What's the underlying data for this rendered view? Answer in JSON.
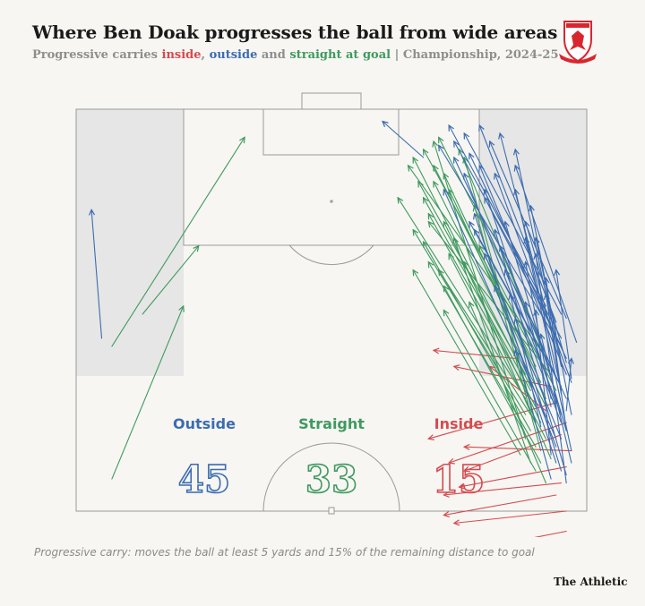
{
  "header": {
    "title": "Where Ben Doak progresses the ball from wide areas",
    "subtitle_prefix": "Progressive carries ",
    "kw_inside": "inside",
    "sep1": ", ",
    "kw_outside": "outside",
    "sep2": " and ",
    "kw_straight": "straight at goal",
    "subtitle_suffix": " | Championship, 2024-25"
  },
  "crest": {
    "icon": "middlesbrough-crest-icon",
    "color": "#d8262f"
  },
  "colors": {
    "inside": "#d54a4f",
    "outside": "#3c6cb0",
    "straight": "#3f9a5f",
    "zone": "#e6e6e6",
    "pitch_line": "#9a9a9a"
  },
  "counts": {
    "outside": {
      "label": "Outside",
      "value": "45"
    },
    "straight": {
      "label": "Straight",
      "value": "33"
    },
    "inside": {
      "label": "Inside",
      "value": "15"
    }
  },
  "footnote": "Progressive carry: moves the ball at least 5 yards and 15% of the remaining distance to goal",
  "brand": "The Athletic",
  "chart_data": {
    "type": "scatter",
    "title": "Where Ben Doak progresses the ball from wide areas",
    "coordinate_note": "x 0-100 across pitch (left to right as viewed), y 0-100 from attacking goal line downwards",
    "categories": [
      "outside",
      "straight",
      "inside"
    ],
    "series": [
      {
        "name": "Outside",
        "color": "#3c6cb0",
        "carries": [
          [
            5,
            57,
            3,
            25
          ],
          [
            68,
            12,
            60,
            3
          ],
          [
            92,
            49,
            73,
            4
          ],
          [
            95,
            51,
            76,
            6
          ],
          [
            94,
            53,
            79,
            4
          ],
          [
            96,
            52,
            81,
            8
          ],
          [
            95,
            57,
            74,
            8
          ],
          [
            94,
            60,
            83,
            6
          ],
          [
            96,
            62,
            77,
            11
          ],
          [
            95,
            64,
            86,
            10
          ],
          [
            96,
            66,
            79,
            14
          ],
          [
            97,
            68,
            82,
            16
          ],
          [
            95,
            70,
            86,
            20
          ],
          [
            96,
            72,
            74,
            12
          ],
          [
            94,
            74,
            80,
            20
          ],
          [
            97,
            76,
            89,
            24
          ],
          [
            95,
            78,
            76,
            16
          ],
          [
            96,
            80,
            84,
            28
          ],
          [
            94,
            82,
            72,
            20
          ],
          [
            97,
            85,
            88,
            32
          ],
          [
            94,
            88,
            78,
            26
          ],
          [
            96,
            91,
            82,
            30
          ],
          [
            93,
            55,
            71,
            9
          ],
          [
            95,
            59,
            80,
            22
          ],
          [
            96,
            63,
            88,
            28
          ],
          [
            98,
            58,
            86,
            14
          ],
          [
            94,
            67,
            83,
            34
          ],
          [
            95,
            69,
            77,
            28
          ],
          [
            93,
            72,
            88,
            38
          ],
          [
            95,
            76,
            84,
            40
          ],
          [
            96,
            80,
            92,
            42
          ],
          [
            94,
            84,
            82,
            44
          ],
          [
            91,
            79,
            85,
            46
          ],
          [
            93,
            86,
            90,
            50
          ],
          [
            95,
            90,
            86,
            52
          ],
          [
            96,
            93,
            90,
            36
          ],
          [
            92,
            62,
            78,
            30
          ],
          [
            94,
            56,
            90,
            32
          ],
          [
            95,
            71,
            92,
            46
          ],
          [
            97,
            67,
            94,
            40
          ],
          [
            93,
            74,
            88,
            48
          ],
          [
            95,
            82,
            80,
            36
          ],
          [
            97,
            88,
            91,
            56
          ],
          [
            93,
            92,
            86,
            60
          ],
          [
            96,
            75,
            97,
            62
          ]
        ]
      },
      {
        "name": "Straight",
        "color": "#3f9a5f",
        "carries": [
          [
            7,
            92,
            21,
            49
          ],
          [
            7,
            59,
            33,
            7
          ],
          [
            13,
            51,
            24,
            34
          ],
          [
            91,
            57,
            71,
            7
          ],
          [
            89,
            59,
            68,
            10
          ],
          [
            92,
            62,
            75,
            10
          ],
          [
            90,
            64,
            70,
            14
          ],
          [
            88,
            66,
            67,
            18
          ],
          [
            91,
            68,
            72,
            16
          ],
          [
            89,
            70,
            68,
            22
          ],
          [
            92,
            72,
            73,
            20
          ],
          [
            90,
            74,
            69,
            26
          ],
          [
            88,
            76,
            66,
            30
          ],
          [
            91,
            78,
            72,
            28
          ],
          [
            89,
            80,
            68,
            33
          ],
          [
            92,
            82,
            73,
            36
          ],
          [
            90,
            84,
            69,
            38
          ],
          [
            87,
            86,
            66,
            40
          ],
          [
            91,
            88,
            72,
            44
          ],
          [
            89,
            69,
            66,
            12
          ],
          [
            92,
            74,
            70,
            18
          ],
          [
            90,
            78,
            76,
            12
          ],
          [
            88,
            82,
            70,
            8
          ],
          [
            91,
            85,
            78,
            24
          ],
          [
            89,
            88,
            74,
            32
          ],
          [
            93,
            66,
            69,
            28
          ],
          [
            90,
            90,
            72,
            50
          ],
          [
            92,
            93,
            77,
            48
          ],
          [
            88,
            72,
            63,
            22
          ],
          [
            91,
            60,
            65,
            14
          ],
          [
            94,
            70,
            79,
            34
          ],
          [
            89,
            76,
            71,
            40
          ],
          [
            93,
            87,
            76,
            38
          ]
        ]
      },
      {
        "name": "Inside",
        "color": "#d54a4f",
        "carries": [
          [
            86,
            62,
            70,
            60
          ],
          [
            94,
            73,
            69,
            82
          ],
          [
            97,
            85,
            76,
            84
          ],
          [
            95,
            93,
            72,
            96
          ],
          [
            96,
            78,
            73,
            88
          ],
          [
            94,
            96,
            72,
            101
          ],
          [
            96,
            105,
            72,
            111
          ],
          [
            91,
            108,
            73,
            113
          ],
          [
            95,
            111,
            73,
            116
          ],
          [
            96,
            100,
            74,
            103
          ],
          [
            95,
            81,
            76,
            90
          ],
          [
            93,
            69,
            74,
            64
          ],
          [
            96,
            115,
            72,
            120
          ],
          [
            92,
            75,
            81,
            64
          ],
          [
            96,
            89,
            75,
            94
          ]
        ]
      }
    ]
  }
}
